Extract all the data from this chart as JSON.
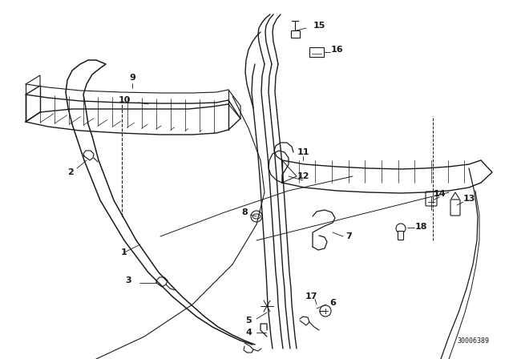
{
  "background_color": "#ffffff",
  "line_color": "#1a1a1a",
  "doc_number": "30006389",
  "fig_width": 6.4,
  "fig_height": 4.48,
  "dpi": 100
}
